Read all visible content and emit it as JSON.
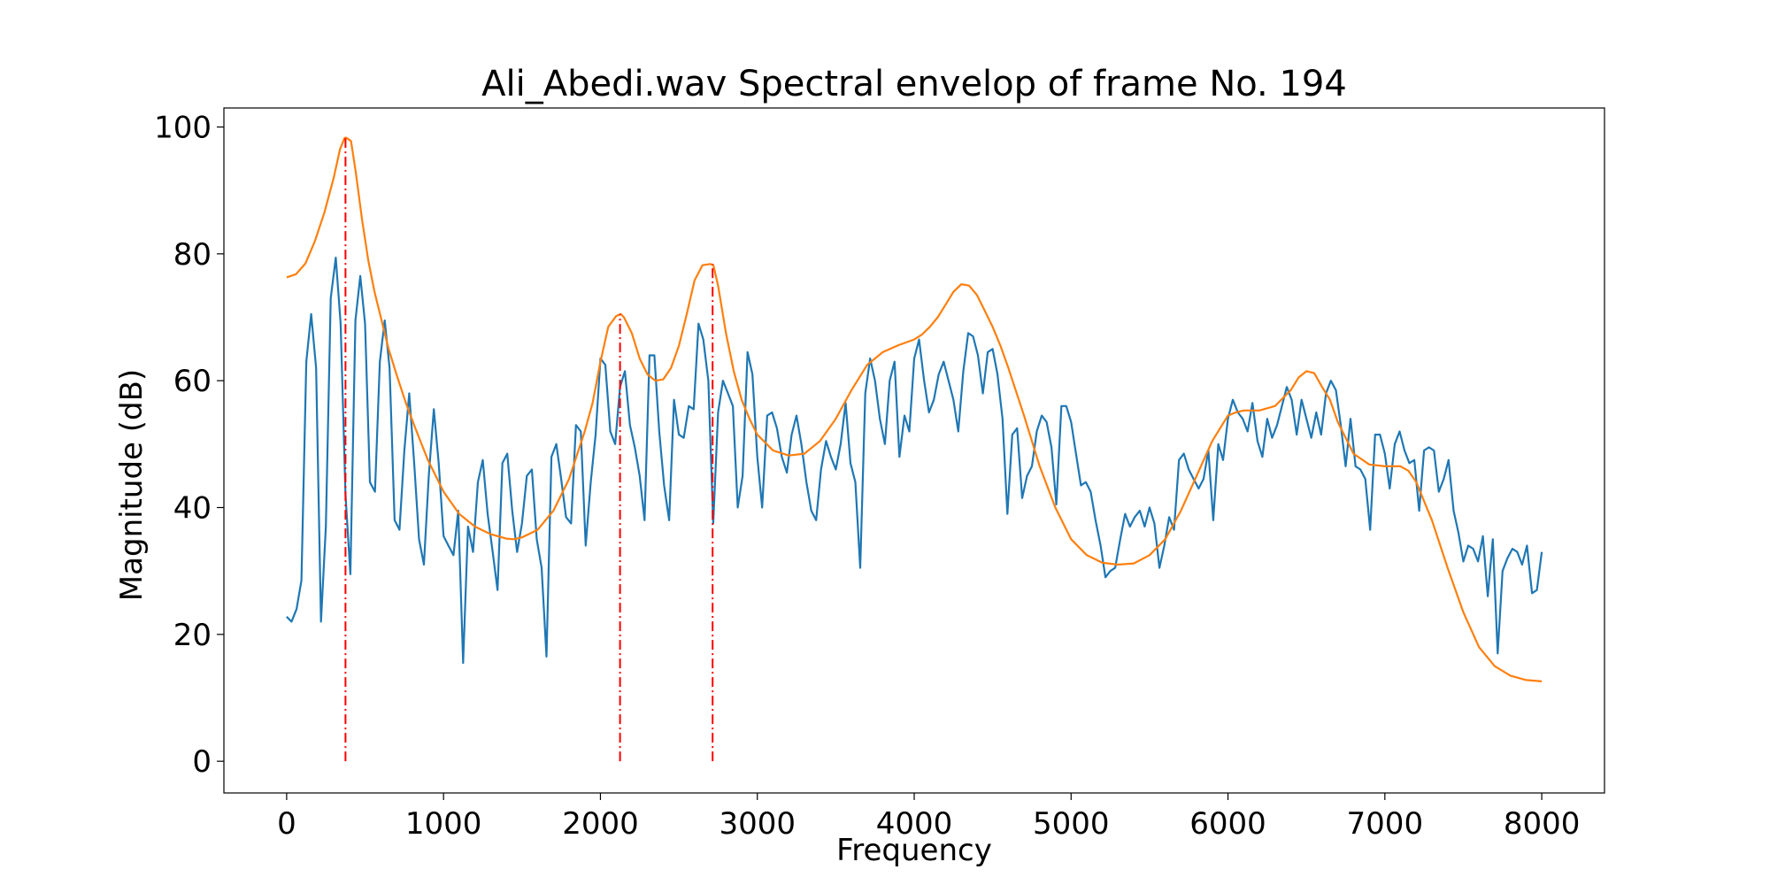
{
  "chart_data": {
    "type": "line",
    "title": "Ali_Abedi.wav Spectral envelop of frame No. 194",
    "xlabel": "Frequency",
    "ylabel": "Magnitude (dB)",
    "xlim": [
      -400,
      8400
    ],
    "ylim": [
      -5,
      103
    ],
    "xticks": [
      0,
      1000,
      2000,
      3000,
      4000,
      5000,
      6000,
      7000,
      8000
    ],
    "yticks": [
      0,
      20,
      40,
      60,
      80,
      100
    ],
    "grid": false,
    "legend": "none",
    "colors": {
      "spectrum": "#1f77b4",
      "envelope": "#ff7f0e",
      "formant": "#ff0000"
    },
    "series": [
      {
        "key": "spectrum",
        "x": [
          0,
          31,
          63,
          94,
          125,
          156,
          188,
          219,
          250,
          281,
          313,
          344,
          375,
          406,
          438,
          469,
          500,
          531,
          563,
          594,
          625,
          656,
          688,
          719,
          750,
          781,
          813,
          844,
          875,
          906,
          938,
          969,
          1000,
          1031,
          1063,
          1094,
          1125,
          1156,
          1188,
          1219,
          1250,
          1281,
          1313,
          1344,
          1375,
          1406,
          1438,
          1469,
          1500,
          1531,
          1563,
          1594,
          1625,
          1656,
          1688,
          1719,
          1750,
          1781,
          1813,
          1844,
          1875,
          1906,
          1938,
          1969,
          2000,
          2031,
          2063,
          2094,
          2125,
          2156,
          2188,
          2219,
          2250,
          2281,
          2313,
          2344,
          2375,
          2406,
          2438,
          2469,
          2500,
          2531,
          2563,
          2594,
          2625,
          2656,
          2688,
          2719,
          2750,
          2781,
          2813,
          2844,
          2875,
          2906,
          2938,
          2969,
          3000,
          3031,
          3063,
          3094,
          3125,
          3156,
          3188,
          3219,
          3250,
          3281,
          3313,
          3344,
          3375,
          3406,
          3438,
          3469,
          3500,
          3531,
          3563,
          3594,
          3625,
          3656,
          3688,
          3719,
          3750,
          3781,
          3813,
          3844,
          3875,
          3906,
          3938,
          3969,
          4000,
          4031,
          4063,
          4094,
          4125,
          4156,
          4188,
          4219,
          4250,
          4281,
          4313,
          4344,
          4375,
          4406,
          4438,
          4469,
          4500,
          4531,
          4563,
          4594,
          4625,
          4656,
          4688,
          4719,
          4750,
          4781,
          4813,
          4844,
          4875,
          4906,
          4938,
          4969,
          5000,
          5031,
          5063,
          5094,
          5125,
          5156,
          5188,
          5219,
          5250,
          5281,
          5313,
          5344,
          5375,
          5406,
          5438,
          5469,
          5500,
          5531,
          5563,
          5594,
          5625,
          5656,
          5688,
          5719,
          5750,
          5781,
          5813,
          5844,
          5875,
          5906,
          5938,
          5969,
          6000,
          6031,
          6063,
          6094,
          6125,
          6156,
          6188,
          6219,
          6250,
          6281,
          6313,
          6344,
          6375,
          6406,
          6438,
          6469,
          6500,
          6531,
          6563,
          6594,
          6625,
          6656,
          6688,
          6719,
          6750,
          6781,
          6813,
          6844,
          6875,
          6906,
          6938,
          6969,
          7000,
          7031,
          7063,
          7094,
          7125,
          7156,
          7188,
          7219,
          7250,
          7281,
          7313,
          7344,
          7375,
          7406,
          7438,
          7469,
          7500,
          7531,
          7563,
          7594,
          7625,
          7656,
          7688,
          7719,
          7750,
          7781,
          7813,
          7844,
          7875,
          7906,
          7938,
          7969,
          8000
        ],
        "y": [
          22.8,
          22,
          24,
          28.5,
          63,
          70.5,
          62,
          22,
          37,
          73,
          79.4,
          69,
          42,
          29.5,
          69.5,
          76.5,
          69,
          44,
          42.5,
          63,
          69.5,
          62,
          38,
          36.5,
          49,
          58,
          47,
          35,
          31,
          45,
          55.5,
          47,
          35.5,
          34,
          32.5,
          39.5,
          15.5,
          37,
          33,
          44,
          47.5,
          39,
          33,
          27,
          47,
          48.5,
          39.5,
          33,
          37.5,
          45,
          46,
          35,
          30.5,
          16.5,
          48,
          50,
          44.5,
          38.5,
          37.5,
          53,
          52,
          34,
          44,
          51.5,
          63.5,
          62.5,
          52,
          50,
          59,
          61.5,
          53,
          49.5,
          45,
          38,
          64,
          64,
          52,
          43.5,
          38,
          57,
          51.5,
          51,
          56,
          55.5,
          69,
          66.5,
          60,
          37.5,
          55,
          60,
          58,
          56,
          40,
          45,
          64.5,
          61,
          48,
          40,
          54.5,
          55,
          52.5,
          48,
          45.5,
          51.5,
          54.5,
          50,
          44,
          39.5,
          38,
          46,
          50.5,
          48,
          46,
          50,
          56.5,
          47,
          44,
          30.5,
          58,
          63.5,
          60,
          54,
          50,
          60,
          63,
          48,
          54.5,
          52,
          63.5,
          66.5,
          60,
          55,
          57,
          61,
          63,
          60,
          57,
          52,
          61.5,
          67.5,
          67,
          64,
          58,
          64.5,
          65,
          61,
          54,
          39,
          51.5,
          52.5,
          41.5,
          45,
          46.5,
          52,
          54.5,
          53.5,
          49.5,
          40.5,
          56,
          56,
          53.5,
          48.5,
          43.5,
          44,
          42.5,
          38,
          34,
          29,
          30,
          30.5,
          35,
          39,
          37,
          38.5,
          39.5,
          37,
          40,
          37.5,
          30.5,
          34,
          38.5,
          36.5,
          47.5,
          48.5,
          46,
          44.5,
          43,
          44.5,
          49,
          38,
          50,
          47.5,
          54,
          57,
          55,
          54,
          52,
          56.5,
          50.5,
          48,
          54,
          51,
          53,
          56,
          59,
          57,
          51.5,
          57,
          54,
          51,
          55,
          51.5,
          58,
          60,
          58.5,
          53,
          46.5,
          54,
          46.5,
          46,
          44.5,
          36.5,
          51.5,
          51.5,
          48.5,
          43,
          50,
          52,
          49,
          47,
          47.5,
          39.5,
          49,
          49.5,
          49,
          42.5,
          44.5,
          47.5,
          39.5,
          36,
          31.5,
          34,
          33.5,
          31.5,
          35.5,
          26,
          35,
          17,
          30,
          32,
          33.5,
          33,
          31,
          34,
          26.5,
          27,
          33
        ]
      },
      {
        "key": "envelope",
        "x": [
          0,
          60,
          120,
          180,
          240,
          300,
          340,
          370,
          380,
          410,
          440,
          480,
          520,
          560,
          600,
          650,
          700,
          760,
          820,
          900,
          1000,
          1100,
          1200,
          1300,
          1400,
          1450,
          1500,
          1600,
          1700,
          1800,
          1900,
          1950,
          2000,
          2050,
          2100,
          2130,
          2150,
          2200,
          2250,
          2300,
          2350,
          2400,
          2450,
          2500,
          2550,
          2600,
          2650,
          2700,
          2720,
          2750,
          2800,
          2850,
          2900,
          2950,
          3000,
          3100,
          3200,
          3300,
          3400,
          3500,
          3600,
          3700,
          3800,
          3900,
          4000,
          4050,
          4100,
          4150,
          4200,
          4250,
          4300,
          4350,
          4400,
          4450,
          4500,
          4550,
          4600,
          4700,
          4800,
          4900,
          5000,
          5100,
          5200,
          5300,
          5400,
          5500,
          5600,
          5700,
          5800,
          5900,
          6000,
          6050,
          6100,
          6200,
          6300,
          6400,
          6450,
          6500,
          6550,
          6600,
          6650,
          6700,
          6800,
          6900,
          7000,
          7100,
          7150,
          7200,
          7300,
          7400,
          7500,
          7600,
          7700,
          7800,
          7900,
          8000
        ],
        "y": [
          76.3,
          76.8,
          78.5,
          82,
          86.5,
          92,
          96.5,
          98.3,
          98.3,
          97.8,
          93,
          85.5,
          79,
          74,
          70,
          65,
          61,
          56.5,
          52.5,
          47.5,
          42.5,
          39,
          37,
          35.8,
          35.1,
          35,
          35.3,
          36.5,
          39.5,
          44.5,
          52,
          56.5,
          63,
          68.5,
          70.2,
          70.5,
          70,
          67.5,
          63.5,
          61,
          60,
          60.2,
          62,
          65.5,
          70.5,
          75.8,
          78.2,
          78.4,
          78.2,
          75,
          67.5,
          61.5,
          57,
          54,
          51.5,
          49,
          48.2,
          48.5,
          50.5,
          54,
          58.5,
          62.5,
          64.5,
          65.6,
          66.5,
          67.3,
          68.5,
          70,
          72,
          74,
          75.2,
          75,
          73.5,
          71,
          68.5,
          65.5,
          62,
          54.5,
          46.5,
          40,
          35,
          32.5,
          31.3,
          31,
          31.2,
          32.5,
          35,
          39.5,
          45,
          50.5,
          54.5,
          55,
          55.3,
          55.3,
          56,
          58.5,
          60.5,
          61.5,
          61.2,
          59,
          57,
          53.5,
          48.5,
          46.8,
          46.5,
          46.5,
          45.8,
          44,
          38,
          30.5,
          23.5,
          18,
          15,
          13.5,
          12.8,
          12.6
        ]
      }
    ],
    "formant_lines": [
      {
        "x": 375,
        "y": [
          0,
          98.3
        ]
      },
      {
        "x": 2125,
        "y": [
          0,
          70.5
        ]
      },
      {
        "x": 2715,
        "y": [
          0,
          78.4
        ]
      }
    ]
  }
}
